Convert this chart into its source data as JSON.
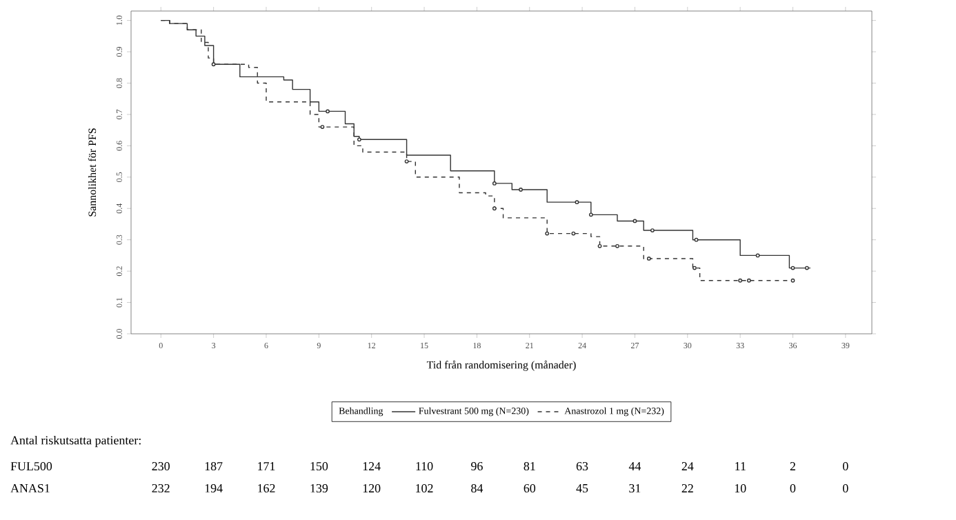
{
  "chart_data": {
    "type": "step",
    "xlabel": "Tid från randomisering (månader)",
    "ylabel": "Sannolikhet för PFS",
    "legend_title": "Behandling",
    "legend": "bottom",
    "grid": false,
    "xlim": [
      -1.7,
      40.5
    ],
    "ylim": [
      0,
      1.03
    ],
    "xticks": [
      0,
      3,
      6,
      9,
      12,
      15,
      18,
      21,
      24,
      27,
      30,
      33,
      36,
      39
    ],
    "yticks": [
      {
        "value": 0,
        "label": "0.0"
      },
      {
        "value": 0.1,
        "label": "0.1"
      },
      {
        "value": 0.2,
        "label": "0.2"
      },
      {
        "value": 0.3,
        "label": "0.3"
      },
      {
        "value": 0.4,
        "label": "0.4"
      },
      {
        "value": 0.5,
        "label": "0.5"
      },
      {
        "value": 0.6,
        "label": "0.6"
      },
      {
        "value": 0.7,
        "label": "0.7"
      },
      {
        "value": 0.8,
        "label": "0.8"
      },
      {
        "value": 0.9,
        "label": "0.9"
      },
      {
        "value": 1,
        "label": "1.0"
      }
    ],
    "series": [
      {
        "name": "Fulvestrant 500 mg (N=230)",
        "color": "#333333",
        "line_style": "solid",
        "marker": "none",
        "x": [
          0,
          0.5,
          1.5,
          2,
          2.5,
          3,
          4.5,
          7,
          7.5,
          8.5,
          9,
          10.5,
          11,
          11.3,
          14,
          16.5,
          19,
          20,
          22,
          24.5,
          26,
          27.5,
          30.3,
          33,
          35.8,
          37
        ],
        "values": [
          1.0,
          0.99,
          0.97,
          0.95,
          0.92,
          0.86,
          0.82,
          0.81,
          0.78,
          0.74,
          0.71,
          0.67,
          0.63,
          0.62,
          0.57,
          0.52,
          0.48,
          0.46,
          0.42,
          0.38,
          0.36,
          0.33,
          0.3,
          0.25,
          0.21,
          0.21
        ]
      },
      {
        "name": "Anastrozol 1 mg (N=232)",
        "color": "#333333",
        "line_style": "dashed",
        "marker": "none",
        "x": [
          0,
          0.5,
          1.5,
          2.3,
          2.7,
          3,
          5,
          5.5,
          6,
          8.5,
          9,
          11,
          11.5,
          14,
          14.5,
          17,
          18.5,
          19,
          19.5,
          22,
          24.5,
          25,
          27.5,
          30.3,
          30.7,
          36
        ],
        "values": [
          1.0,
          0.99,
          0.97,
          0.93,
          0.88,
          0.86,
          0.85,
          0.8,
          0.74,
          0.7,
          0.66,
          0.6,
          0.58,
          0.55,
          0.5,
          0.45,
          0.44,
          0.4,
          0.37,
          0.32,
          0.31,
          0.28,
          0.24,
          0.21,
          0.17,
          0.17
        ]
      },
      {
        "type": "scatter",
        "color": "#333333",
        "marker": "circle",
        "x": [
          3,
          9.5,
          11.3,
          19,
          20.5,
          23.7,
          24.5,
          27,
          28,
          30.5,
          34,
          36,
          36.8
        ],
        "values": [
          0.86,
          0.71,
          0.62,
          0.48,
          0.46,
          0.42,
          0.38,
          0.36,
          0.33,
          0.3,
          0.25,
          0.21,
          0.21
        ]
      },
      {
        "type": "scatter",
        "color": "#333333",
        "marker": "circle",
        "x": [
          9.2,
          14,
          19,
          22,
          23.5,
          25,
          26,
          27.8,
          30.4,
          33,
          33.5,
          36
        ],
        "values": [
          0.66,
          0.55,
          0.4,
          0.32,
          0.32,
          0.28,
          0.28,
          0.24,
          0.21,
          0.17,
          0.17,
          0.17
        ]
      }
    ],
    "annotations": [
      "Antal riskutsatta patienter:",
      "FUL500",
      "230",
      "187",
      "171",
      "150",
      "124",
      "110",
      "96",
      "81",
      "63",
      "44",
      "24",
      "11",
      "2",
      "0",
      "ANAS1",
      "232",
      "194",
      "162",
      "139",
      "120",
      "102",
      "84",
      "60",
      "45",
      "31",
      "22",
      "10",
      "0",
      "0"
    ]
  }
}
